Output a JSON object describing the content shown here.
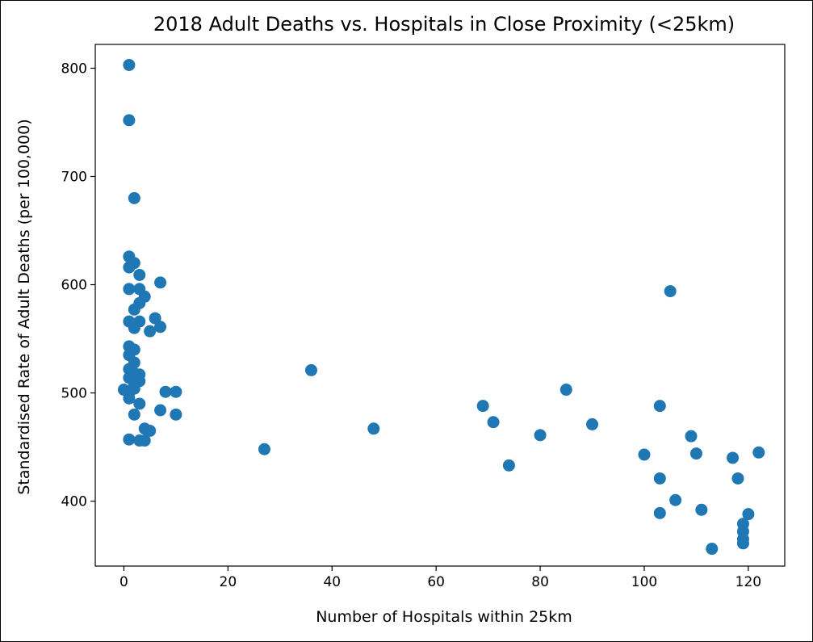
{
  "chart_data": {
    "type": "scatter",
    "title": "2018 Adult Deaths vs. Hospitals in Close Proximity (<25km)",
    "xlabel": "Number of Hospitals within 25km",
    "ylabel": "Standardised Rate of Adult Deaths (per 100,000)",
    "xlim": [
      -5.5,
      127
    ],
    "ylim": [
      340,
      822
    ],
    "xticks": [
      0,
      20,
      40,
      60,
      80,
      100,
      120
    ],
    "yticks": [
      400,
      500,
      600,
      700,
      800
    ],
    "grid": false,
    "legend": "none",
    "marker_color": "#1f77b4",
    "points": [
      {
        "x": 1,
        "y": 803
      },
      {
        "x": 1,
        "y": 752
      },
      {
        "x": 2,
        "y": 680
      },
      {
        "x": 1,
        "y": 626
      },
      {
        "x": 1,
        "y": 616
      },
      {
        "x": 2,
        "y": 620
      },
      {
        "x": 3,
        "y": 609
      },
      {
        "x": 7,
        "y": 602
      },
      {
        "x": 1,
        "y": 596
      },
      {
        "x": 3,
        "y": 596
      },
      {
        "x": 4,
        "y": 589
      },
      {
        "x": 3,
        "y": 583
      },
      {
        "x": 2,
        "y": 577
      },
      {
        "x": 6,
        "y": 569
      },
      {
        "x": 1,
        "y": 566
      },
      {
        "x": 3,
        "y": 566
      },
      {
        "x": 2,
        "y": 560
      },
      {
        "x": 7,
        "y": 561
      },
      {
        "x": 5,
        "y": 557
      },
      {
        "x": 1,
        "y": 543
      },
      {
        "x": 2,
        "y": 540
      },
      {
        "x": 1,
        "y": 535
      },
      {
        "x": 2,
        "y": 528
      },
      {
        "x": 1,
        "y": 522
      },
      {
        "x": 2,
        "y": 518
      },
      {
        "x": 3,
        "y": 517
      },
      {
        "x": 1,
        "y": 514
      },
      {
        "x": 3,
        "y": 511
      },
      {
        "x": 2,
        "y": 507
      },
      {
        "x": 0,
        "y": 503
      },
      {
        "x": 1,
        "y": 500
      },
      {
        "x": 2,
        "y": 504
      },
      {
        "x": 1,
        "y": 495
      },
      {
        "x": 3,
        "y": 490
      },
      {
        "x": 8,
        "y": 501
      },
      {
        "x": 10,
        "y": 501
      },
      {
        "x": 7,
        "y": 484
      },
      {
        "x": 2,
        "y": 480
      },
      {
        "x": 10,
        "y": 480
      },
      {
        "x": 4,
        "y": 467
      },
      {
        "x": 5,
        "y": 465
      },
      {
        "x": 1,
        "y": 457
      },
      {
        "x": 3,
        "y": 456
      },
      {
        "x": 4,
        "y": 456
      },
      {
        "x": 27,
        "y": 448
      },
      {
        "x": 36,
        "y": 521
      },
      {
        "x": 48,
        "y": 467
      },
      {
        "x": 69,
        "y": 488
      },
      {
        "x": 71,
        "y": 473
      },
      {
        "x": 74,
        "y": 433
      },
      {
        "x": 80,
        "y": 461
      },
      {
        "x": 85,
        "y": 503
      },
      {
        "x": 90,
        "y": 471
      },
      {
        "x": 100,
        "y": 443
      },
      {
        "x": 103,
        "y": 488
      },
      {
        "x": 103,
        "y": 421
      },
      {
        "x": 103,
        "y": 389
      },
      {
        "x": 105,
        "y": 594
      },
      {
        "x": 106,
        "y": 401
      },
      {
        "x": 109,
        "y": 460
      },
      {
        "x": 110,
        "y": 444
      },
      {
        "x": 111,
        "y": 392
      },
      {
        "x": 113,
        "y": 356
      },
      {
        "x": 117,
        "y": 440
      },
      {
        "x": 118,
        "y": 421
      },
      {
        "x": 119,
        "y": 379
      },
      {
        "x": 119,
        "y": 372
      },
      {
        "x": 119,
        "y": 365
      },
      {
        "x": 119,
        "y": 361
      },
      {
        "x": 120,
        "y": 388
      },
      {
        "x": 122,
        "y": 445
      }
    ]
  }
}
